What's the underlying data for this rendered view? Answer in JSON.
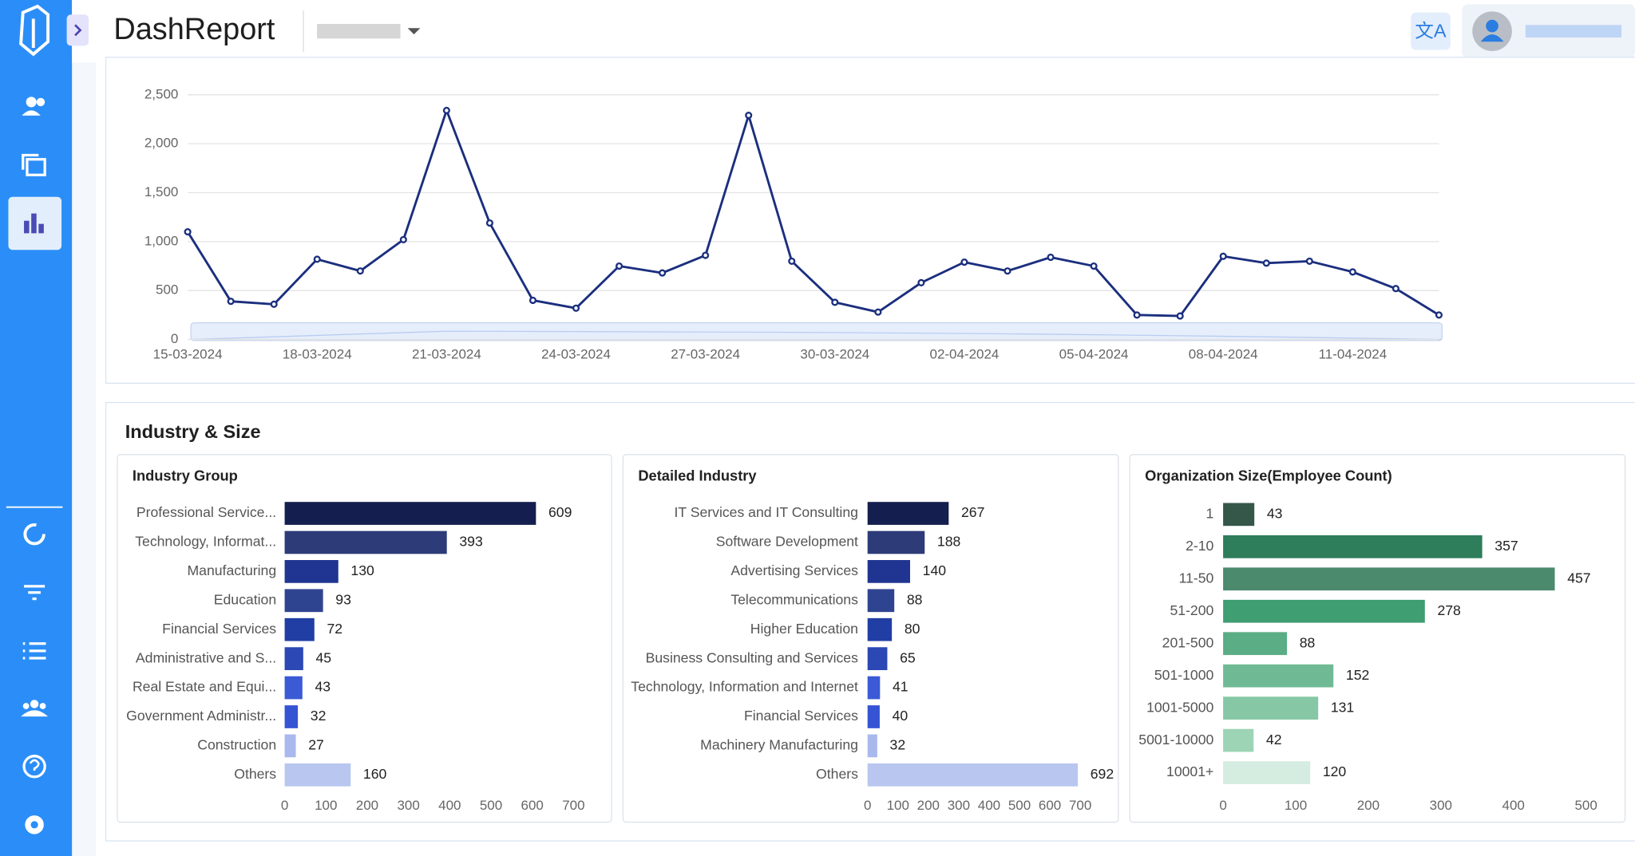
{
  "app": {
    "title": "DashReport"
  },
  "section": {
    "title": "Industry & Size"
  },
  "chart_data": [
    {
      "type": "line",
      "color": "#1b2f7e",
      "categories": [
        "15-03-2024",
        null,
        null,
        "18-03-2024",
        null,
        null,
        "21-03-2024",
        null,
        null,
        "24-03-2024",
        null,
        null,
        "27-03-2024",
        null,
        null,
        "30-03-2024",
        null,
        null,
        "02-04-2024",
        null,
        null,
        "05-04-2024",
        null,
        null,
        "08-04-2024",
        null,
        null,
        "11-04-2024",
        null,
        null
      ],
      "values": [
        1100,
        390,
        360,
        820,
        700,
        1020,
        2340,
        1190,
        400,
        320,
        750,
        680,
        860,
        2290,
        800,
        380,
        280,
        580,
        790,
        700,
        840,
        750,
        250,
        240,
        850,
        780,
        800,
        690,
        520,
        250
      ],
      "ylim": [
        0,
        2500
      ],
      "yticks": [
        0,
        500,
        {
          "value": 1000,
          "label": "1,000"
        },
        {
          "value": 1500,
          "label": "1,500"
        },
        {
          "value": 2000,
          "label": "2,000"
        },
        {
          "value": 2500,
          "label": "2,500"
        }
      ],
      "grid": true
    },
    {
      "type": "bar",
      "orientation": "horizontal",
      "title": "Industry Group",
      "categories": [
        "Professional Service...",
        "Technology, Informat...",
        "Manufacturing",
        "Education",
        "Financial Services",
        "Administrative and S...",
        "Real Estate and Equi...",
        "Government Administr...",
        "Construction",
        "Others"
      ],
      "values": [
        609,
        393,
        130,
        93,
        72,
        45,
        43,
        32,
        27,
        160
      ],
      "colors": [
        "#141f4f",
        "#2d3b78",
        "#1f3591",
        "#2f4490",
        "#213ea5",
        "#2b48b4",
        "#3a5ad6",
        "#3554d4",
        "#a9b9ee",
        "#b8c6f0"
      ],
      "xlim": [
        0,
        700
      ],
      "xticks": [
        0,
        100,
        200,
        300,
        400,
        500,
        600,
        700
      ]
    },
    {
      "type": "bar",
      "orientation": "horizontal",
      "title": "Detailed Industry",
      "categories": [
        "IT Services and IT Consulting",
        "Software Development",
        "Advertising Services",
        "Telecommunications",
        "Higher Education",
        "Business Consulting and Services",
        "Technology, Information and Internet",
        "Financial Services",
        "Machinery Manufacturing",
        "Others"
      ],
      "values": [
        267,
        188,
        140,
        88,
        80,
        65,
        41,
        40,
        32,
        692
      ],
      "colors": [
        "#141f4f",
        "#2d3b78",
        "#1f3591",
        "#2f4490",
        "#213ea5",
        "#2b48b4",
        "#3a5ad6",
        "#3554d4",
        "#a9b9ee",
        "#b8c6f0"
      ],
      "xlim": [
        0,
        700
      ],
      "xticks": [
        0,
        100,
        200,
        300,
        400,
        500,
        600,
        700
      ]
    },
    {
      "type": "bar",
      "orientation": "horizontal",
      "title": "Organization Size(Employee Count)",
      "categories": [
        "1",
        "2-10",
        "11-50",
        "51-200",
        "201-500",
        "501-1000",
        "1001-5000",
        "5001-10000",
        "10001+"
      ],
      "values": [
        43,
        357,
        457,
        278,
        88,
        152,
        131,
        42,
        120
      ],
      "colors": [
        "#35574a",
        "#2e7d5b",
        "#4b8a6c",
        "#3f9e72",
        "#5aad84",
        "#6fba94",
        "#86c8a6",
        "#9dd4b6",
        "#d5ece0"
      ],
      "xlim": [
        0,
        500
      ],
      "xticks": [
        0,
        100,
        200,
        300,
        400,
        500
      ]
    }
  ]
}
